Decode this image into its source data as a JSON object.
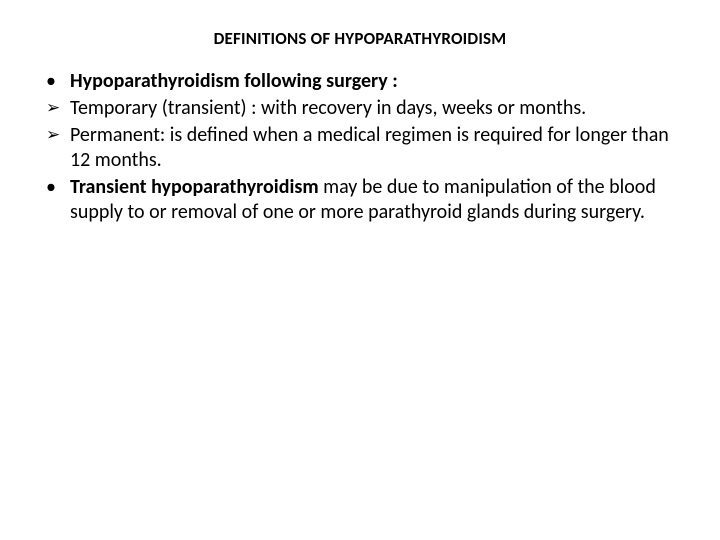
{
  "title": "DEFINITIONS OF HYPOPARATHYROIDISM",
  "items": [
    {
      "bullet": "•",
      "bullet_class": "disc",
      "segments": [
        {
          "text": "Hypoparathyroidism following surgery :",
          "bold": true
        }
      ]
    },
    {
      "bullet": "➢",
      "bullet_class": "arrow",
      "segments": [
        {
          "text": "Temporary (transient) : with recovery in days, weeks or months.",
          "bold": false
        }
      ]
    },
    {
      "bullet": "➢",
      "bullet_class": "arrow",
      "segments": [
        {
          "text": "Permanent: is defined when a medical regimen is required for longer   than 12 months.",
          "bold": false
        }
      ]
    },
    {
      "bullet": "•",
      "bullet_class": "disc",
      "segments": [
        {
          "text": "Transient hypoparathyroidism ",
          "bold": true
        },
        {
          "text": "may be due to manipulation of the blood supply to or removal of one or more parathyroid glands during surgery.",
          "bold": false
        }
      ]
    }
  ]
}
